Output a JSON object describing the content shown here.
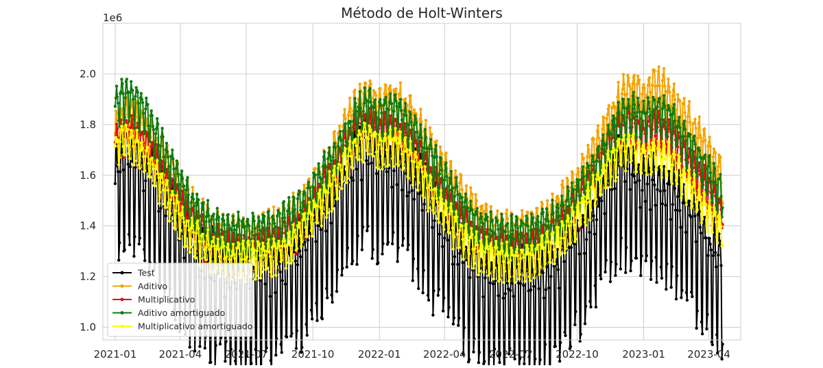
{
  "chart_data": {
    "type": "line",
    "title": "Método de Holt-Winters",
    "xlabel": "",
    "ylabel": "",
    "y_scale_label": "1e6",
    "x_range": [
      "2020-12-15",
      "2023-05-15"
    ],
    "ylim": [
      0.95,
      2.2
    ],
    "y_ticks": [
      1.0,
      1.2,
      1.4,
      1.6,
      1.8,
      2.0
    ],
    "y_tick_labels": [
      "1.0",
      "1.2",
      "1.4",
      "1.6",
      "1.8",
      "2.0"
    ],
    "x_ticks": [
      "2021-01-01",
      "2021-04-01",
      "2021-07-01",
      "2021-10-01",
      "2022-01-01",
      "2022-04-01",
      "2022-07-01",
      "2022-10-01",
      "2023-01-01",
      "2023-04-01"
    ],
    "x_tick_labels": [
      "2021-01",
      "2021-04",
      "2021-07",
      "2021-10",
      "2022-01",
      "2022-04",
      "2022-07",
      "2022-10",
      "2023-01",
      "2023-04"
    ],
    "grid": true,
    "legend_position": "lower-left",
    "marker": "circle",
    "daily_series_period": {
      "start": "2021-01-01",
      "end": "2023-04-20",
      "frequency": "daily"
    },
    "series": [
      {
        "name": "Test",
        "color": "#000000",
        "x": [
          "2021-01-01",
          "2021-01-15",
          "2021-02-01",
          "2021-02-15",
          "2021-03-01",
          "2021-03-15",
          "2021-04-01",
          "2021-04-15",
          "2021-05-01",
          "2021-05-15",
          "2021-06-01",
          "2021-06-15",
          "2021-07-01",
          "2021-07-15",
          "2021-08-01",
          "2021-08-15",
          "2021-09-01",
          "2021-09-15",
          "2021-10-01",
          "2021-10-15",
          "2021-11-01",
          "2021-11-15",
          "2021-12-01",
          "2021-12-15",
          "2022-01-01",
          "2022-01-15",
          "2022-02-01",
          "2022-02-15",
          "2022-03-01",
          "2022-03-15",
          "2022-04-01",
          "2022-04-15",
          "2022-05-01",
          "2022-05-15",
          "2022-06-01",
          "2022-06-15",
          "2022-07-01",
          "2022-07-15",
          "2022-08-01",
          "2022-08-15",
          "2022-09-01",
          "2022-09-15",
          "2022-10-01",
          "2022-10-15",
          "2022-11-01",
          "2022-11-15",
          "2022-12-01",
          "2022-12-15",
          "2023-01-01",
          "2023-01-15",
          "2023-02-01",
          "2023-02-15",
          "2023-03-01",
          "2023-03-15",
          "2023-04-01",
          "2023-04-15"
        ],
        "y": [
          1.6,
          1.7,
          1.66,
          1.62,
          1.55,
          1.45,
          1.38,
          1.32,
          1.27,
          1.25,
          1.22,
          1.21,
          1.21,
          1.2,
          1.21,
          1.23,
          1.27,
          1.31,
          1.37,
          1.42,
          1.5,
          1.58,
          1.66,
          1.7,
          1.62,
          1.66,
          1.63,
          1.58,
          1.52,
          1.46,
          1.4,
          1.33,
          1.27,
          1.23,
          1.21,
          1.2,
          1.19,
          1.18,
          1.18,
          1.2,
          1.23,
          1.28,
          1.34,
          1.4,
          1.49,
          1.58,
          1.64,
          1.6,
          1.55,
          1.58,
          1.53,
          1.5,
          1.45,
          1.4,
          1.32,
          1.28
        ],
        "amplitude": 0.16
      },
      {
        "name": "Aditivo",
        "color": "#f5a300",
        "x": [
          "2021-01-01",
          "2021-01-15",
          "2021-02-01",
          "2021-02-15",
          "2021-03-01",
          "2021-03-15",
          "2021-04-01",
          "2021-04-15",
          "2021-05-01",
          "2021-05-15",
          "2021-06-01",
          "2021-06-15",
          "2021-07-01",
          "2021-07-15",
          "2021-08-01",
          "2021-08-15",
          "2021-09-01",
          "2021-09-15",
          "2021-10-01",
          "2021-10-15",
          "2021-11-01",
          "2021-11-15",
          "2021-12-01",
          "2021-12-15",
          "2022-01-01",
          "2022-01-15",
          "2022-02-01",
          "2022-02-15",
          "2022-03-01",
          "2022-03-15",
          "2022-04-01",
          "2022-04-15",
          "2022-05-01",
          "2022-05-15",
          "2022-06-01",
          "2022-06-15",
          "2022-07-01",
          "2022-07-15",
          "2022-08-01",
          "2022-08-15",
          "2022-09-01",
          "2022-09-15",
          "2022-10-01",
          "2022-10-15",
          "2022-11-01",
          "2022-11-15",
          "2022-12-01",
          "2022-12-15",
          "2023-01-01",
          "2023-01-15",
          "2023-02-01",
          "2023-02-15",
          "2023-03-01",
          "2023-03-15",
          "2023-04-01",
          "2023-04-15"
        ],
        "y": [
          1.78,
          1.85,
          1.82,
          1.78,
          1.72,
          1.64,
          1.56,
          1.49,
          1.44,
          1.41,
          1.39,
          1.38,
          1.38,
          1.38,
          1.39,
          1.41,
          1.45,
          1.5,
          1.56,
          1.63,
          1.71,
          1.8,
          1.88,
          1.93,
          1.88,
          1.92,
          1.9,
          1.85,
          1.78,
          1.71,
          1.64,
          1.57,
          1.51,
          1.46,
          1.43,
          1.41,
          1.4,
          1.4,
          1.41,
          1.43,
          1.47,
          1.52,
          1.58,
          1.65,
          1.74,
          1.83,
          1.92,
          1.95,
          1.92,
          1.97,
          1.94,
          1.9,
          1.84,
          1.77,
          1.7,
          1.62
        ],
        "amplitude": 0.08
      },
      {
        "name": "Multiplicativo",
        "color": "#e01010",
        "x": [
          "2021-01-01",
          "2021-01-15",
          "2021-02-01",
          "2021-02-15",
          "2021-03-01",
          "2021-03-15",
          "2021-04-01",
          "2021-04-15",
          "2021-05-01",
          "2021-05-15",
          "2021-06-01",
          "2021-06-15",
          "2021-07-01",
          "2021-07-15",
          "2021-08-01",
          "2021-08-15",
          "2021-09-01",
          "2021-09-15",
          "2021-10-01",
          "2021-10-15",
          "2021-11-01",
          "2021-11-15",
          "2021-12-01",
          "2021-12-15",
          "2022-01-01",
          "2022-01-15",
          "2022-02-01",
          "2022-02-15",
          "2022-03-01",
          "2022-03-15",
          "2022-04-01",
          "2022-04-15",
          "2022-05-01",
          "2022-05-15",
          "2022-06-01",
          "2022-06-15",
          "2022-07-01",
          "2022-07-15",
          "2022-08-01",
          "2022-08-15",
          "2022-09-01",
          "2022-09-15",
          "2022-10-01",
          "2022-10-15",
          "2022-11-01",
          "2022-11-15",
          "2022-12-01",
          "2022-12-15",
          "2023-01-01",
          "2023-01-15",
          "2023-02-01",
          "2023-02-15",
          "2023-03-01",
          "2023-03-15",
          "2023-04-01",
          "2023-04-15"
        ],
        "y": [
          1.74,
          1.78,
          1.76,
          1.72,
          1.65,
          1.57,
          1.49,
          1.43,
          1.38,
          1.35,
          1.33,
          1.32,
          1.32,
          1.32,
          1.33,
          1.35,
          1.39,
          1.44,
          1.5,
          1.57,
          1.64,
          1.72,
          1.79,
          1.82,
          1.77,
          1.8,
          1.78,
          1.73,
          1.67,
          1.6,
          1.53,
          1.46,
          1.41,
          1.37,
          1.34,
          1.33,
          1.32,
          1.32,
          1.33,
          1.35,
          1.39,
          1.44,
          1.5,
          1.57,
          1.65,
          1.73,
          1.8,
          1.81,
          1.77,
          1.8,
          1.78,
          1.74,
          1.68,
          1.62,
          1.55,
          1.48
        ],
        "amplitude": 0.07
      },
      {
        "name": "Aditivo amortiguado",
        "color": "#0f7a0f",
        "x": [
          "2021-01-01",
          "2021-01-15",
          "2021-02-01",
          "2021-02-15",
          "2021-03-01",
          "2021-03-15",
          "2021-04-01",
          "2021-04-15",
          "2021-05-01",
          "2021-05-15",
          "2021-06-01",
          "2021-06-15",
          "2021-07-01",
          "2021-07-15",
          "2021-08-01",
          "2021-08-15",
          "2021-09-01",
          "2021-09-15",
          "2021-10-01",
          "2021-10-15",
          "2021-11-01",
          "2021-11-15",
          "2021-12-01",
          "2021-12-15",
          "2022-01-01",
          "2022-01-15",
          "2022-02-01",
          "2022-02-15",
          "2022-03-01",
          "2022-03-15",
          "2022-04-01",
          "2022-04-15",
          "2022-05-01",
          "2022-05-15",
          "2022-06-01",
          "2022-06-15",
          "2022-07-01",
          "2022-07-15",
          "2022-08-01",
          "2022-08-15",
          "2022-09-01",
          "2022-09-15",
          "2022-10-01",
          "2022-10-15",
          "2022-11-01",
          "2022-11-15",
          "2022-12-01",
          "2022-12-15",
          "2023-01-01",
          "2023-01-15",
          "2023-02-01",
          "2023-02-15",
          "2023-03-01",
          "2023-03-15",
          "2023-04-01",
          "2023-04-15"
        ],
        "y": [
          1.88,
          1.93,
          1.9,
          1.84,
          1.76,
          1.67,
          1.58,
          1.5,
          1.45,
          1.42,
          1.4,
          1.39,
          1.39,
          1.39,
          1.4,
          1.42,
          1.45,
          1.5,
          1.55,
          1.62,
          1.69,
          1.77,
          1.85,
          1.89,
          1.84,
          1.88,
          1.86,
          1.81,
          1.74,
          1.67,
          1.6,
          1.53,
          1.47,
          1.43,
          1.4,
          1.39,
          1.38,
          1.38,
          1.39,
          1.41,
          1.44,
          1.48,
          1.54,
          1.6,
          1.68,
          1.76,
          1.84,
          1.87,
          1.84,
          1.88,
          1.85,
          1.81,
          1.75,
          1.69,
          1.62,
          1.56
        ],
        "amplitude": 0.07
      },
      {
        "name": "Multiplicativo amortiguado",
        "color": "#ffff00",
        "x": [
          "2021-01-01",
          "2021-01-15",
          "2021-02-01",
          "2021-02-15",
          "2021-03-01",
          "2021-03-15",
          "2021-04-01",
          "2021-04-15",
          "2021-05-01",
          "2021-05-15",
          "2021-06-01",
          "2021-06-15",
          "2021-07-01",
          "2021-07-15",
          "2021-08-01",
          "2021-08-15",
          "2021-09-01",
          "2021-09-15",
          "2021-10-01",
          "2021-10-15",
          "2021-11-01",
          "2021-11-15",
          "2021-12-01",
          "2021-12-15",
          "2022-01-01",
          "2022-01-15",
          "2022-02-01",
          "2022-02-15",
          "2022-03-01",
          "2022-03-15",
          "2022-04-01",
          "2022-04-15",
          "2022-05-01",
          "2022-05-15",
          "2022-06-01",
          "2022-06-15",
          "2022-07-01",
          "2022-07-15",
          "2022-08-01",
          "2022-08-15",
          "2022-09-01",
          "2022-09-15",
          "2022-10-01",
          "2022-10-15",
          "2022-11-01",
          "2022-11-15",
          "2022-12-01",
          "2022-12-15",
          "2023-01-01",
          "2023-01-15",
          "2023-02-01",
          "2023-02-15",
          "2023-03-01",
          "2023-03-15",
          "2023-04-01",
          "2023-04-15"
        ],
        "y": [
          1.72,
          1.76,
          1.73,
          1.68,
          1.61,
          1.53,
          1.45,
          1.39,
          1.35,
          1.32,
          1.3,
          1.29,
          1.29,
          1.29,
          1.3,
          1.32,
          1.35,
          1.4,
          1.46,
          1.52,
          1.59,
          1.67,
          1.74,
          1.77,
          1.72,
          1.74,
          1.72,
          1.67,
          1.61,
          1.54,
          1.47,
          1.41,
          1.36,
          1.32,
          1.3,
          1.29,
          1.28,
          1.28,
          1.29,
          1.31,
          1.34,
          1.39,
          1.45,
          1.51,
          1.59,
          1.66,
          1.72,
          1.73,
          1.69,
          1.71,
          1.69,
          1.65,
          1.59,
          1.53,
          1.47,
          1.41
        ],
        "amplitude": 0.06
      }
    ]
  }
}
